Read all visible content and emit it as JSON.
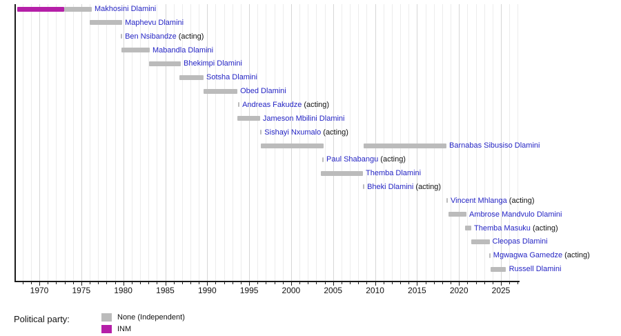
{
  "chart_data": {
    "type": "timeline",
    "description": "Gantt-style timeline of office holders by year",
    "x_axis": {
      "major_ticks": [
        1970,
        1975,
        1980,
        1985,
        1990,
        1995,
        2000,
        2005,
        2010,
        2015,
        2020,
        2025
      ],
      "minor_tick_step_years": 1,
      "range_start_year": 1967.1,
      "range_end_year": 2027.2,
      "grid": "vertical yearly gridlines, darker every 5 years"
    },
    "acting_suffix": "(acting)",
    "parties": [
      {
        "id": "none",
        "label": "None (Independent)",
        "color": "#bbbbbb"
      },
      {
        "id": "inm",
        "label": "INM",
        "color": "#b51fa8"
      }
    ],
    "rows": [
      {
        "label": "Makhosini Dlamini",
        "acting": false,
        "segments": [
          {
            "start": 1967.37,
            "end": 1972.96,
            "party": "inm"
          },
          {
            "start": 1972.96,
            "end": 1976.25,
            "party": "none"
          }
        ]
      },
      {
        "label": "Maphevu Dlamini",
        "acting": false,
        "segments": [
          {
            "start": 1976.0,
            "end": 1979.87,
            "party": "none"
          }
        ]
      },
      {
        "label": "Ben Nsibandze",
        "acting": true,
        "segments": [
          {
            "start": 1979.7,
            "end": 1979.87,
            "party": "none"
          }
        ]
      },
      {
        "label": "Mabandla Dlamini",
        "acting": false,
        "segments": [
          {
            "start": 1979.78,
            "end": 1983.15,
            "party": "none"
          }
        ]
      },
      {
        "label": "Bhekimpi Dlamini",
        "acting": false,
        "segments": [
          {
            "start": 1983.07,
            "end": 1986.85,
            "party": "none"
          }
        ]
      },
      {
        "label": "Sotsha Dlamini",
        "acting": false,
        "segments": [
          {
            "start": 1986.69,
            "end": 1989.57,
            "party": "none"
          }
        ]
      },
      {
        "label": "Obed Dlamini",
        "acting": false,
        "segments": [
          {
            "start": 1989.57,
            "end": 1993.6,
            "party": "none"
          }
        ]
      },
      {
        "label": "Andreas Fakudze",
        "acting": true,
        "segments": [
          {
            "start": 1993.68,
            "end": 1993.85,
            "party": "none"
          }
        ]
      },
      {
        "label": "Jameson Mbilini Dlamini",
        "acting": false,
        "segments": [
          {
            "start": 1993.6,
            "end": 1996.3,
            "party": "none"
          }
        ]
      },
      {
        "label": "Sishayi Nxumalo",
        "acting": true,
        "segments": [
          {
            "start": 1996.3,
            "end": 1996.5,
            "party": "none"
          }
        ]
      },
      {
        "label": "Barnabas Sibusiso Dlamini",
        "acting": false,
        "segments": [
          {
            "start": 1996.4,
            "end": 2003.87,
            "party": "none"
          },
          {
            "start": 2008.64,
            "end": 2018.5,
            "party": "none"
          }
        ]
      },
      {
        "label": "Paul Shabangu",
        "acting": true,
        "segments": [
          {
            "start": 2003.7,
            "end": 2003.87,
            "party": "none"
          }
        ]
      },
      {
        "label": "Themba Dlamini",
        "acting": false,
        "segments": [
          {
            "start": 2003.54,
            "end": 2008.56,
            "party": "none"
          }
        ]
      },
      {
        "label": "Bheki Dlamini",
        "acting": true,
        "segments": [
          {
            "start": 2008.56,
            "end": 2008.73,
            "party": "none"
          }
        ]
      },
      {
        "label": "Vincent Mhlanga",
        "acting": true,
        "segments": [
          {
            "start": 2018.5,
            "end": 2018.67,
            "party": "none"
          }
        ]
      },
      {
        "label": "Ambrose Mandvulo Dlamini",
        "acting": false,
        "segments": [
          {
            "start": 2018.72,
            "end": 2020.89,
            "party": "none"
          }
        ]
      },
      {
        "label": "Themba Masuku",
        "acting": true,
        "segments": [
          {
            "start": 2020.72,
            "end": 2021.46,
            "party": "none"
          }
        ]
      },
      {
        "label": "Cleopas Dlamini",
        "acting": false,
        "segments": [
          {
            "start": 2021.46,
            "end": 2023.64,
            "party": "none"
          }
        ]
      },
      {
        "label": "Mgwagwa Gamedze",
        "acting": true,
        "segments": [
          {
            "start": 2023.58,
            "end": 2023.75,
            "party": "none"
          }
        ]
      },
      {
        "label": "Russell Dlamini",
        "acting": false,
        "segments": [
          {
            "start": 2023.8,
            "end": 2025.62,
            "party": "none"
          }
        ]
      }
    ],
    "colors": {
      "link_text": "#2424c4",
      "plain_text": "#111111",
      "axis": "#1a1a1a",
      "gridline_minor": "#ececec",
      "gridline_major": "#d6d6d6"
    }
  },
  "legend": {
    "title": "Political party:",
    "items": [
      {
        "label": "None (Independent)",
        "color": "#bbbbbb"
      },
      {
        "label": "INM",
        "color": "#b51fa8"
      }
    ]
  }
}
